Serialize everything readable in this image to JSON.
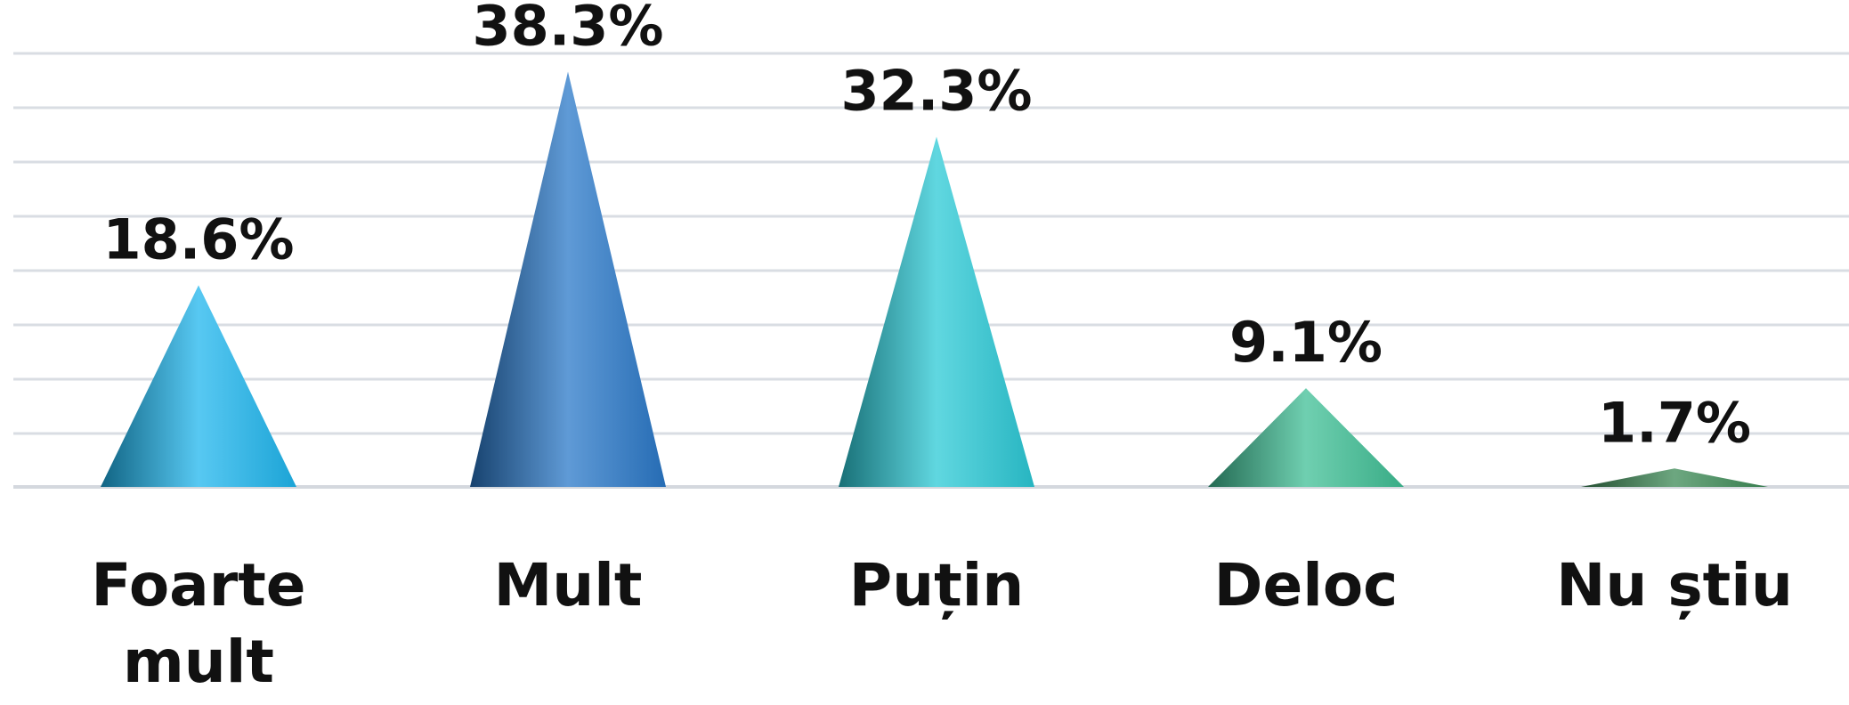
{
  "chart_data": {
    "type": "bar",
    "style": "cone",
    "categories": [
      "Foarte mult",
      "Mult",
      "Puțin",
      "Deloc",
      "Nu știu"
    ],
    "values": [
      18.6,
      38.3,
      32.3,
      9.1,
      1.7
    ],
    "value_labels": [
      "18.6%",
      "38.3%",
      "32.3%",
      "9.1%",
      "1.7%"
    ],
    "title": "",
    "xlabel": "",
    "ylabel": "",
    "ylim": [
      0,
      40
    ],
    "grid": true,
    "legend": "none",
    "colors": [
      "#1fb6ee",
      "#2a78c8",
      "#2bc9d6",
      "#3fbf95",
      "#3c8a55"
    ]
  }
}
